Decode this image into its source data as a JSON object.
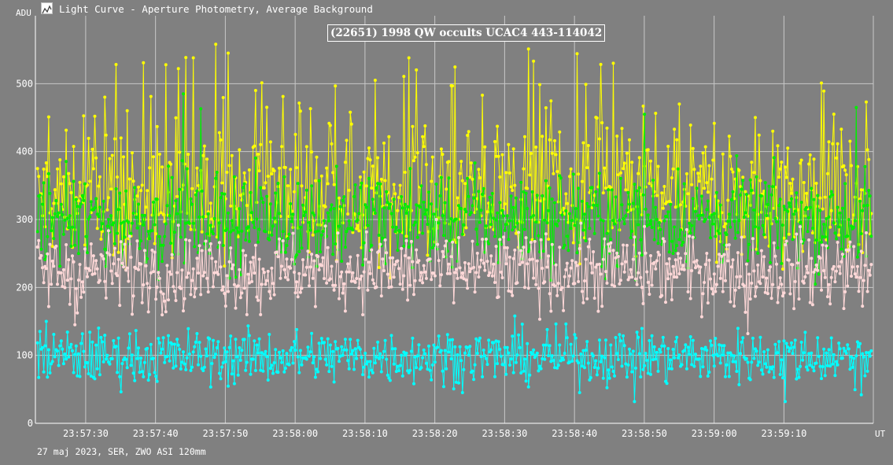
{
  "app": {
    "title": "Light Curve - Aperture Photometry, Average Background",
    "icon": "light-curve-app-icon",
    "footer": "27 maj 2023, SER, ZWO ASI 120mm"
  },
  "chart_data": {
    "type": "line",
    "title": "(22651) 1998 QW occults UCAC4 443-114042",
    "ylabel": "ADU",
    "xlabel": "UT",
    "ylim": [
      0,
      600
    ],
    "xlim": [
      "23:57:22.8",
      "23:59:22.8"
    ],
    "yticks": [
      0,
      100,
      200,
      300,
      400,
      500
    ],
    "ytick_labels": [
      "0",
      "100",
      "200",
      "300",
      "400",
      "500"
    ],
    "xticks": [
      "23:57:30",
      "23:57:40",
      "23:57:50",
      "23:58:00",
      "23:58:10",
      "23:58:20",
      "23:58:30",
      "23:58:40",
      "23:58:50",
      "23:59:00",
      "23:59:10"
    ],
    "grid": true,
    "background": "#808080",
    "grid_color": "#c8c8c8",
    "series": [
      {
        "color": "#ffff00",
        "mean": 330,
        "spread": 45,
        "peaks": true,
        "samples": [
          {
            "t": "23:57:45.4",
            "v": 538
          },
          {
            "t": "23:57:48.6",
            "v": 558
          },
          {
            "t": "23:57:50.4",
            "v": 545
          },
          {
            "t": "23:57:54.4",
            "v": 490
          },
          {
            "t": "23:58:11.4",
            "v": 505
          },
          {
            "t": "23:58:16.2",
            "v": 538
          },
          {
            "t": "23:58:22.4",
            "v": 497
          },
          {
            "t": "23:58:33.4",
            "v": 551
          },
          {
            "t": "23:58:34.2",
            "v": 533
          },
          {
            "t": "23:58:45.6",
            "v": 530
          },
          {
            "t": "23:58:55.0",
            "v": 470
          },
          {
            "t": "23:59:21.8",
            "v": 473
          }
        ]
      },
      {
        "color": "#00ee00",
        "mean": 300,
        "spread": 35,
        "peaks": false,
        "samples": [
          {
            "t": "23:57:44.0",
            "v": 485
          },
          {
            "t": "23:57:46.4",
            "v": 463
          },
          {
            "t": "23:58:50.0",
            "v": 455
          },
          {
            "t": "23:59:20.4",
            "v": 465
          }
        ]
      },
      {
        "color": "#ffd8d8",
        "mean": 225,
        "spread": 28,
        "peaks": false,
        "samples": [
          {
            "t": "23:57:28.4",
            "v": 145
          },
          {
            "t": "23:57:55.0",
            "v": 160
          },
          {
            "t": "23:58:26.4",
            "v": 230
          },
          {
            "t": "23:59:04.8",
            "v": 132
          }
        ]
      },
      {
        "color": "#00ffff",
        "mean": 98,
        "spread": 20,
        "peaks": false,
        "samples": [
          {
            "t": "23:57:24.4",
            "v": 150
          },
          {
            "t": "23:58:31.4",
            "v": 158
          },
          {
            "t": "23:58:48.6",
            "v": 32
          },
          {
            "t": "23:59:10.2",
            "v": 32
          },
          {
            "t": "23:59:21.0",
            "v": 42
          }
        ]
      }
    ]
  }
}
